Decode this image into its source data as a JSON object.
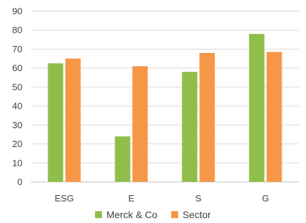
{
  "chart_data": {
    "type": "bar",
    "categories": [
      "ESG",
      "E",
      "S",
      "G"
    ],
    "series": [
      {
        "name": "Merck & Co",
        "values": [
          62.5,
          24,
          58,
          78
        ],
        "color": "#8fbe4b"
      },
      {
        "name": "Sector",
        "values": [
          65,
          61,
          68,
          68.5
        ],
        "color": "#f69747"
      }
    ],
    "ylim": [
      0,
      90
    ],
    "yticks": [
      0,
      10,
      20,
      30,
      40,
      50,
      60,
      70,
      80,
      90
    ],
    "grid": true,
    "legend": "bottom"
  }
}
